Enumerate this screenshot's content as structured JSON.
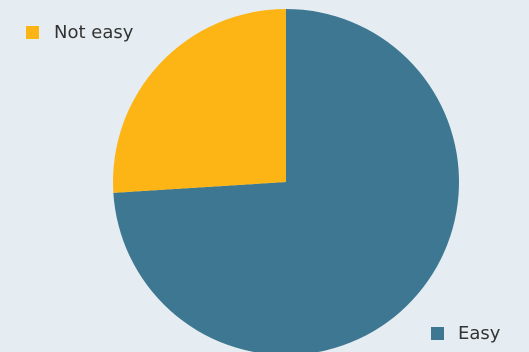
{
  "chart_data": {
    "type": "pie",
    "categories": [
      "Easy",
      "Not easy"
    ],
    "values": [
      74,
      26
    ],
    "colors": [
      "#3d7791",
      "#fdb515"
    ]
  }
}
